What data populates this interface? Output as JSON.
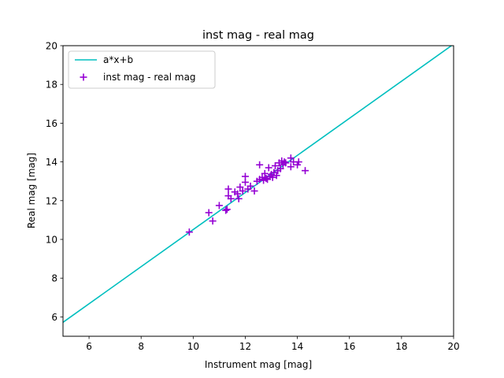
{
  "chart_data": {
    "type": "scatter",
    "title": "inst mag - real mag",
    "xlabel": "Instrument mag [mag]",
    "ylabel": "Real mag [mag]",
    "xlim": [
      5,
      20
    ],
    "ylim": [
      5,
      20
    ],
    "xticks": [
      "6",
      "8",
      "10",
      "12",
      "14",
      "16",
      "18",
      "20"
    ],
    "yticks": [
      "6",
      "8",
      "10",
      "12",
      "14",
      "16",
      "18",
      "20"
    ],
    "grid": false,
    "legend_placement": "upper-left",
    "series": [
      {
        "name": "a*x+b",
        "kind": "line",
        "color": "#00bfbf",
        "x": [
          5,
          20
        ],
        "y": [
          5.72,
          20.08
        ]
      },
      {
        "name": "inst mag - real mag",
        "kind": "scatter",
        "marker": "plus",
        "color": "#9400d3",
        "points": [
          [
            9.85,
            10.38
          ],
          [
            10.6,
            11.38
          ],
          [
            10.75,
            10.95
          ],
          [
            11.0,
            11.75
          ],
          [
            11.25,
            11.5
          ],
          [
            11.3,
            11.55
          ],
          [
            11.35,
            12.6
          ],
          [
            11.35,
            12.25
          ],
          [
            11.45,
            12.1
          ],
          [
            11.6,
            12.45
          ],
          [
            11.7,
            12.35
          ],
          [
            11.75,
            12.1
          ],
          [
            11.8,
            12.7
          ],
          [
            11.9,
            12.5
          ],
          [
            12.0,
            12.95
          ],
          [
            12.0,
            13.25
          ],
          [
            12.1,
            12.6
          ],
          [
            12.2,
            12.75
          ],
          [
            12.35,
            12.5
          ],
          [
            12.45,
            13.0
          ],
          [
            12.55,
            13.1
          ],
          [
            12.55,
            13.85
          ],
          [
            12.65,
            13.2
          ],
          [
            12.7,
            13.05
          ],
          [
            12.75,
            13.4
          ],
          [
            12.8,
            13.15
          ],
          [
            12.85,
            13.1
          ],
          [
            12.9,
            13.7
          ],
          [
            12.95,
            13.25
          ],
          [
            13.0,
            13.35
          ],
          [
            13.05,
            13.2
          ],
          [
            13.1,
            13.45
          ],
          [
            13.15,
            13.8
          ],
          [
            13.2,
            13.3
          ],
          [
            13.25,
            13.55
          ],
          [
            13.3,
            13.95
          ],
          [
            13.35,
            13.65
          ],
          [
            13.4,
            14.05
          ],
          [
            13.45,
            13.85
          ],
          [
            13.5,
            14.0
          ],
          [
            13.55,
            13.95
          ],
          [
            13.75,
            14.2
          ],
          [
            13.75,
            13.75
          ],
          [
            13.85,
            14.0
          ],
          [
            14.0,
            13.85
          ],
          [
            14.05,
            14.0
          ],
          [
            14.3,
            13.55
          ]
        ]
      }
    ]
  }
}
